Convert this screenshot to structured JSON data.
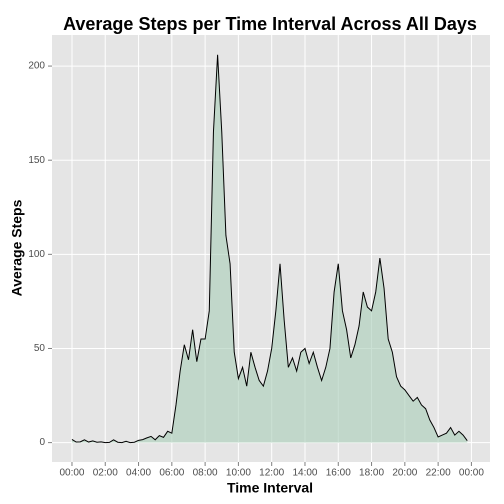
{
  "chart_data": {
    "type": "area",
    "title": "Average Steps per Time Interval Across All Days",
    "x_label": "Time Interval",
    "y_label": "Average Steps",
    "x": [
      0,
      15,
      30,
      45,
      60,
      75,
      90,
      105,
      120,
      135,
      150,
      165,
      180,
      195,
      210,
      225,
      240,
      255,
      270,
      285,
      300,
      315,
      330,
      345,
      360,
      375,
      390,
      405,
      420,
      435,
      450,
      465,
      480,
      495,
      510,
      525,
      540,
      555,
      570,
      585,
      600,
      615,
      630,
      645,
      660,
      675,
      690,
      705,
      720,
      735,
      750,
      765,
      780,
      795,
      810,
      825,
      840,
      855,
      870,
      885,
      900,
      915,
      930,
      945,
      960,
      975,
      990,
      1005,
      1020,
      1035,
      1050,
      1065,
      1080,
      1095,
      1110,
      1125,
      1140,
      1155,
      1170,
      1185,
      1200,
      1215,
      1230,
      1245,
      1260,
      1275,
      1290,
      1305,
      1320,
      1335,
      1350,
      1365,
      1380,
      1395,
      1410,
      1425
    ],
    "values": [
      1.7,
      0.3,
      0.4,
      1.5,
      0.3,
      0.9,
      0.2,
      0.4,
      0,
      0.1,
      1.5,
      0.2,
      0,
      0.7,
      0,
      0.2,
      1.2,
      1.6,
      2.5,
      3.3,
      1.5,
      3.7,
      2.8,
      6,
      5,
      20,
      38,
      52,
      44,
      60,
      43,
      55,
      55,
      70,
      165,
      206,
      165,
      110,
      95,
      48,
      34,
      40,
      30,
      48,
      40,
      33,
      30,
      38,
      50,
      70,
      95,
      65,
      40,
      45,
      38,
      48,
      50,
      42,
      48,
      40,
      33,
      40,
      50,
      80,
      95,
      70,
      60,
      45,
      52,
      62,
      80,
      72,
      70,
      80,
      98,
      82,
      55,
      48,
      35,
      30,
      28,
      25,
      22,
      24,
      20,
      18,
      12,
      8,
      3,
      4,
      5,
      8,
      4,
      6,
      4,
      1
    ],
    "line_color": "#000000",
    "fill_color": "#a8cdb8",
    "xlim": [
      -72,
      1507
    ],
    "ylim": [
      -10.3,
      216.5
    ],
    "xticks": [
      {
        "value": 0,
        "label": "00:00"
      },
      {
        "value": 120,
        "label": "02:00"
      },
      {
        "value": 240,
        "label": "04:00"
      },
      {
        "value": 360,
        "label": "06:00"
      },
      {
        "value": 480,
        "label": "08:00"
      },
      {
        "value": 600,
        "label": "10:00"
      },
      {
        "value": 720,
        "label": "12:00"
      },
      {
        "value": 840,
        "label": "14:00"
      },
      {
        "value": 960,
        "label": "16:00"
      },
      {
        "value": 1080,
        "label": "18:00"
      },
      {
        "value": 1200,
        "label": "20:00"
      },
      {
        "value": 1320,
        "label": "22:00"
      },
      {
        "value": 1440,
        "label": "00:00"
      }
    ],
    "yticks": [
      0,
      50,
      100,
      150,
      200
    ],
    "grid": true
  }
}
